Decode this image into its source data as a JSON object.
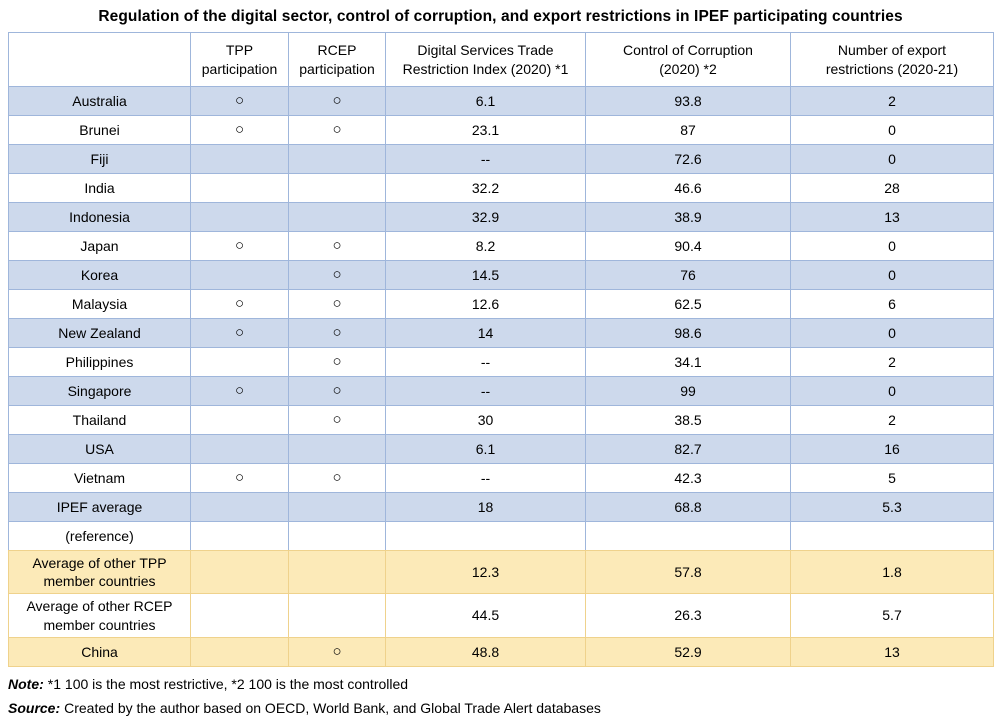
{
  "page_title": "Regulation of the digital sector, control of corruption, and export restrictions in IPEF participating countries",
  "colors": {
    "row_highlight_blue": "#CDD9EC",
    "row_highlight_gold": "#FCEAB8",
    "border_blue": "#9FB6DB",
    "border_gold": "#EFD28C",
    "text": "#000000"
  },
  "table": {
    "participation_mark": "○",
    "columns": [
      "",
      "TPP\nparticipation",
      "RCEP\nparticipation",
      "Digital Services Trade\nRestriction Index (2020) *1",
      "Control of Corruption\n(2020) *2",
      "Number of export\nrestrictions (2020-21)"
    ],
    "rows": [
      {
        "zone": "blue",
        "cells": [
          "Australia",
          "○",
          "○",
          "6.1",
          "93.8",
          "2"
        ]
      },
      {
        "zone": "white",
        "cells": [
          "Brunei",
          "○",
          "○",
          "23.1",
          "87",
          "0"
        ]
      },
      {
        "zone": "blue",
        "cells": [
          "Fiji",
          "",
          "",
          "--",
          "72.6",
          "0"
        ]
      },
      {
        "zone": "white",
        "cells": [
          "India",
          "",
          "",
          "32.2",
          "46.6",
          "28"
        ]
      },
      {
        "zone": "blue",
        "cells": [
          "Indonesia",
          "",
          "",
          "32.9",
          "38.9",
          "13"
        ]
      },
      {
        "zone": "white",
        "cells": [
          "Japan",
          "○",
          "○",
          "8.2",
          "90.4",
          "0"
        ]
      },
      {
        "zone": "blue",
        "cells": [
          "Korea",
          "",
          "○",
          "14.5",
          "76",
          "0"
        ]
      },
      {
        "zone": "white",
        "cells": [
          "Malaysia",
          "○",
          "○",
          "12.6",
          "62.5",
          "6"
        ]
      },
      {
        "zone": "blue",
        "cells": [
          "New Zealand",
          "○",
          "○",
          "14",
          "98.6",
          "0"
        ]
      },
      {
        "zone": "white",
        "cells": [
          "Philippines",
          "",
          "○",
          "--",
          "34.1",
          "2"
        ]
      },
      {
        "zone": "blue",
        "cells": [
          "Singapore",
          "○",
          "○",
          "--",
          "99",
          "0"
        ]
      },
      {
        "zone": "white",
        "cells": [
          "Thailand",
          "",
          "○",
          "30",
          "38.5",
          "2"
        ]
      },
      {
        "zone": "blue",
        "cells": [
          "USA",
          "",
          "",
          "6.1",
          "82.7",
          "16"
        ]
      },
      {
        "zone": "white",
        "cells": [
          "Vietnam",
          "○",
          "○",
          "--",
          "42.3",
          "5"
        ]
      },
      {
        "zone": "blue",
        "cells": [
          "IPEF average",
          "",
          "",
          "18",
          "68.8",
          "5.3"
        ]
      },
      {
        "zone": "white",
        "cells": [
          "(reference)",
          "",
          "",
          "",
          "",
          ""
        ]
      },
      {
        "zone": "gold",
        "cells": [
          "Average of other TPP\nmember countries",
          "",
          "",
          "12.3",
          "57.8",
          "1.8"
        ]
      },
      {
        "zone": "gold-white",
        "cells": [
          "Average of other RCEP\nmember countries",
          "",
          "",
          "44.5",
          "26.3",
          "5.7"
        ]
      },
      {
        "zone": "gold",
        "cells": [
          "China",
          "",
          "○",
          "48.8",
          "52.9",
          "13"
        ]
      }
    ]
  },
  "notes": {
    "note_label": "Note:",
    "note_text": "*1 100 is the most restrictive, *2 100 is the most controlled",
    "source_label": "Source:",
    "source_text": "Created by the author based on OECD, World Bank, and Global Trade Alert databases"
  }
}
